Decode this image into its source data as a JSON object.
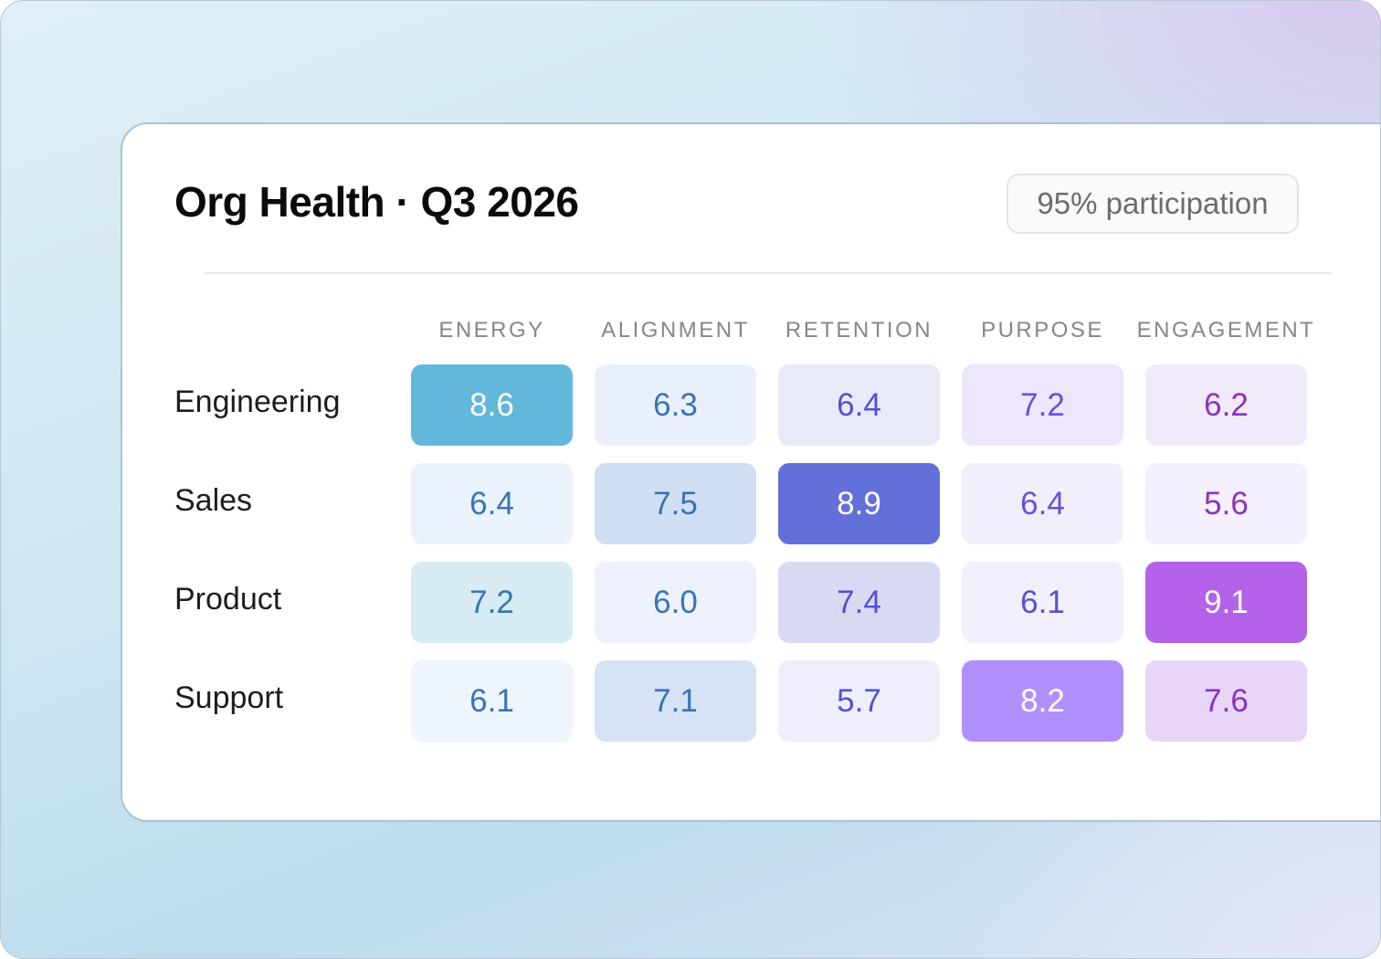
{
  "header": {
    "title": "Org Health · Q3 2026",
    "participation_badge": "95% participation"
  },
  "chart_data": {
    "type": "heatmap",
    "title": "Org Health · Q3 2026",
    "subtitle": "95% participation",
    "columns": [
      "ENERGY",
      "ALIGNMENT",
      "RETENTION",
      "PURPOSE",
      "ENGAGEMENT"
    ],
    "rows": [
      "Engineering",
      "Sales",
      "Product",
      "Support"
    ],
    "values": [
      [
        "8.6",
        "6.3",
        "6.4",
        "7.2",
        "6.2"
      ],
      [
        "6.4",
        "7.5",
        "8.9",
        "6.4",
        "5.6"
      ],
      [
        "7.2",
        "6.0",
        "7.4",
        "6.1",
        "9.1"
      ],
      [
        "6.1",
        "7.1",
        "5.7",
        "8.2",
        "7.6"
      ]
    ],
    "cell_colors": [
      [
        {
          "bg": "#62b8da",
          "fg": "#ffffff"
        },
        {
          "bg": "#eaf0fb",
          "fg": "#3873b4"
        },
        {
          "bg": "#e9eaf9",
          "fg": "#5550cf"
        },
        {
          "bg": "#ede6fc",
          "fg": "#6a4fd9"
        },
        {
          "bg": "#f1eafd",
          "fg": "#8a32c0"
        }
      ],
      [
        {
          "bg": "#eaf3fc",
          "fg": "#3873b4"
        },
        {
          "bg": "#d0e0f4",
          "fg": "#3873b4"
        },
        {
          "bg": "#6470da",
          "fg": "#ffffff"
        },
        {
          "bg": "#f2effd",
          "fg": "#6a4fd9"
        },
        {
          "bg": "#f5f0fd",
          "fg": "#8a32c0"
        }
      ],
      [
        {
          "bg": "#d7ebf4",
          "fg": "#3873b4"
        },
        {
          "bg": "#edf2fc",
          "fg": "#3873b4"
        },
        {
          "bg": "#d8daf3",
          "fg": "#5550cf"
        },
        {
          "bg": "#f3effd",
          "fg": "#5550cf"
        },
        {
          "bg": "#b362e9",
          "fg": "#ffffff"
        }
      ],
      [
        {
          "bg": "#eef5fc",
          "fg": "#3873b4"
        },
        {
          "bg": "#d6e3f4",
          "fg": "#3873b4"
        },
        {
          "bg": "#eeeffb",
          "fg": "#5550cf"
        },
        {
          "bg": "#b18ffc",
          "fg": "#ffffff"
        },
        {
          "bg": "#e9d5f8",
          "fg": "#8a32c0"
        }
      ]
    ],
    "legend": "none",
    "grid": false
  }
}
